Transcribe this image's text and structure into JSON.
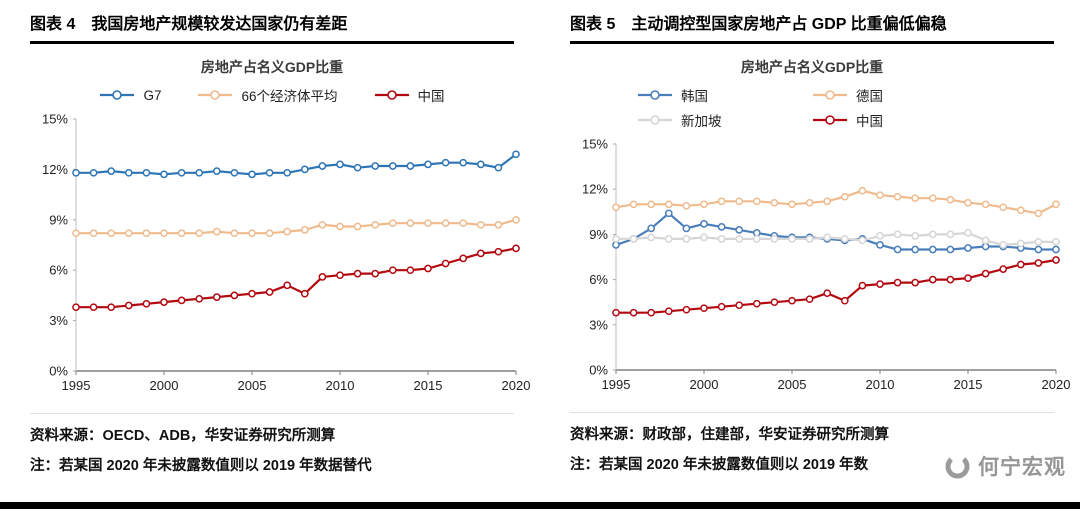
{
  "page": {
    "watermark": {
      "text": "何宁宏观"
    },
    "bottom_bar_color": "#000000"
  },
  "figures": [
    {
      "header": {
        "label": "图表 4",
        "title": "我国房地产规模较发达国家仍有差距"
      },
      "chart_title": "房地产占名义GDP比重",
      "source": "资料来源：OECD、ADB，华安证券研究所测算",
      "note": "注：若某国 2020 年未披露数值则以 2019 年数据替代"
    },
    {
      "header": {
        "label": "图表 5",
        "title": "主动调控型国家房地产占 GDP 比重偏低偏稳"
      },
      "chart_title": "房地产占名义GDP比重",
      "source": "资料来源：财政部，住建部，华安证券研究所测算",
      "note": "注：若某国 2020 年未披露数值则以 2019 年数"
    }
  ],
  "chart_data": [
    {
      "type": "line",
      "title": "房地产占名义GDP比重",
      "xlabel": "",
      "ylabel": "",
      "grid": false,
      "legend_position": "top",
      "ylim": [
        0,
        15
      ],
      "y_ticks": [
        {
          "v": 0,
          "label": "0%"
        },
        {
          "v": 3,
          "label": "3%"
        },
        {
          "v": 6,
          "label": "6%"
        },
        {
          "v": 9,
          "label": "9%"
        },
        {
          "v": 12,
          "label": "12%"
        },
        {
          "v": 15,
          "label": "15%"
        }
      ],
      "x": [
        1995,
        1996,
        1997,
        1998,
        1999,
        2000,
        2001,
        2002,
        2003,
        2004,
        2005,
        2006,
        2007,
        2008,
        2009,
        2010,
        2011,
        2012,
        2013,
        2014,
        2015,
        2016,
        2017,
        2018,
        2019,
        2020
      ],
      "x_ticks": [
        1995,
        2000,
        2005,
        2010,
        2015,
        2020
      ],
      "series": [
        {
          "name": "G7",
          "color": "#2E75B6",
          "values": [
            11.8,
            11.8,
            11.9,
            11.8,
            11.8,
            11.7,
            11.8,
            11.8,
            11.9,
            11.8,
            11.7,
            11.8,
            11.8,
            12.0,
            12.2,
            12.3,
            12.1,
            12.2,
            12.2,
            12.2,
            12.3,
            12.4,
            12.4,
            12.3,
            12.1,
            12.9
          ]
        },
        {
          "name": "66个经济体平均",
          "color": "#EFBA8C",
          "values": [
            8.2,
            8.2,
            8.2,
            8.2,
            8.2,
            8.2,
            8.2,
            8.2,
            8.3,
            8.2,
            8.2,
            8.2,
            8.3,
            8.4,
            8.7,
            8.6,
            8.6,
            8.7,
            8.8,
            8.8,
            8.8,
            8.8,
            8.8,
            8.7,
            8.7,
            9.0
          ]
        },
        {
          "name": "中国",
          "color": "#B30810",
          "values": [
            3.8,
            3.8,
            3.8,
            3.9,
            4.0,
            4.1,
            4.2,
            4.3,
            4.4,
            4.5,
            4.6,
            4.7,
            5.1,
            4.6,
            5.6,
            5.7,
            5.8,
            5.8,
            6.0,
            6.0,
            6.1,
            6.4,
            6.7,
            7.0,
            7.1,
            7.3
          ]
        }
      ]
    },
    {
      "type": "line",
      "title": "房地产占名义GDP比重",
      "xlabel": "",
      "ylabel": "",
      "grid": false,
      "legend_position": "top",
      "ylim": [
        0,
        15
      ],
      "y_ticks": [
        {
          "v": 0,
          "label": "0%"
        },
        {
          "v": 3,
          "label": "3%"
        },
        {
          "v": 6,
          "label": "6%"
        },
        {
          "v": 9,
          "label": "9%"
        },
        {
          "v": 12,
          "label": "12%"
        },
        {
          "v": 15,
          "label": "15%"
        }
      ],
      "x": [
        1995,
        1996,
        1997,
        1998,
        1999,
        2000,
        2001,
        2002,
        2003,
        2004,
        2005,
        2006,
        2007,
        2008,
        2009,
        2010,
        2011,
        2012,
        2013,
        2014,
        2015,
        2016,
        2017,
        2018,
        2019,
        2020
      ],
      "x_ticks": [
        1995,
        2000,
        2005,
        2010,
        2015,
        2020
      ],
      "series": [
        {
          "name": "韩国",
          "color": "#4A7EBB",
          "values": [
            8.3,
            8.7,
            9.4,
            10.4,
            9.4,
            9.7,
            9.5,
            9.3,
            9.1,
            8.9,
            8.8,
            8.8,
            8.7,
            8.6,
            8.7,
            8.3,
            8.0,
            8.0,
            8.0,
            8.0,
            8.1,
            8.2,
            8.2,
            8.1,
            8.0,
            8.0
          ]
        },
        {
          "name": "德国",
          "color": "#EFBA8C",
          "values": [
            10.8,
            11.0,
            11.0,
            11.0,
            10.9,
            11.0,
            11.2,
            11.2,
            11.2,
            11.1,
            11.0,
            11.1,
            11.2,
            11.5,
            11.9,
            11.6,
            11.5,
            11.4,
            11.4,
            11.3,
            11.1,
            11.0,
            10.8,
            10.6,
            10.4,
            11.0
          ]
        },
        {
          "name": "新加坡",
          "color": "#D6D6D6",
          "values": [
            8.7,
            8.7,
            8.8,
            8.7,
            8.7,
            8.8,
            8.7,
            8.7,
            8.7,
            8.7,
            8.7,
            8.7,
            8.8,
            8.7,
            8.6,
            8.9,
            9.0,
            8.9,
            9.0,
            9.0,
            9.1,
            8.6,
            8.3,
            8.4,
            8.5,
            8.5
          ]
        },
        {
          "name": "中国",
          "color": "#B30810",
          "values": [
            3.8,
            3.8,
            3.8,
            3.9,
            4.0,
            4.1,
            4.2,
            4.3,
            4.4,
            4.5,
            4.6,
            4.7,
            5.1,
            4.6,
            5.6,
            5.7,
            5.8,
            5.8,
            6.0,
            6.0,
            6.1,
            6.4,
            6.7,
            7.0,
            7.1,
            7.3
          ]
        }
      ]
    }
  ]
}
